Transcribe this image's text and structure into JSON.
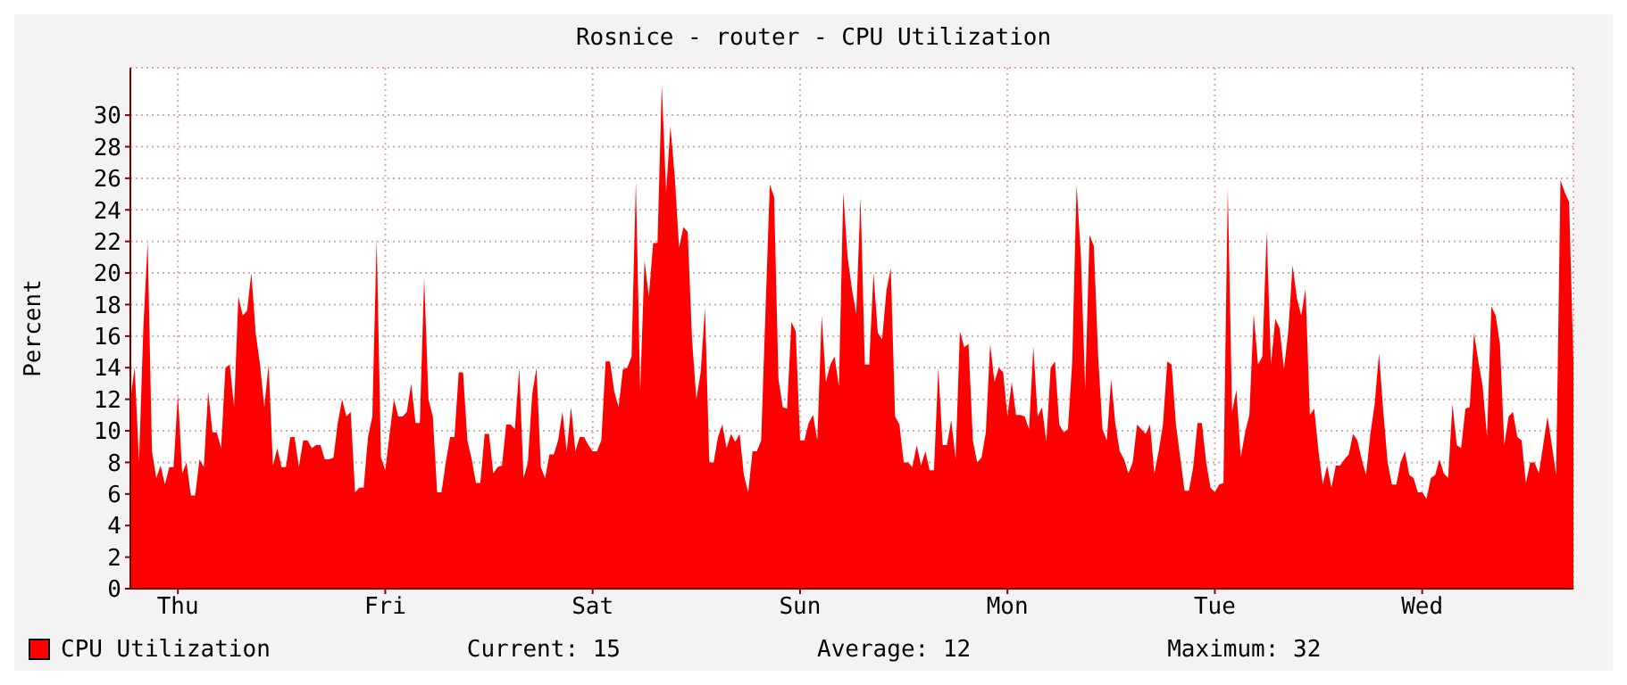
{
  "chart_data": {
    "type": "area",
    "title": "Rosnice - router - CPU Utilization",
    "ylabel": "Percent",
    "ylim": [
      0,
      33
    ],
    "yticks": [
      0,
      2,
      4,
      6,
      8,
      10,
      12,
      14,
      16,
      18,
      20,
      22,
      24,
      26,
      28,
      30
    ],
    "grid": true,
    "legend": "bottom",
    "annotations": [
      "Current: 15",
      "Average: 12",
      "Maximum: 32"
    ],
    "categories": [
      null,
      null,
      null,
      null,
      null,
      null,
      null,
      null,
      null,
      null,
      null,
      "Thu",
      null,
      null,
      null,
      null,
      null,
      null,
      null,
      null,
      null,
      null,
      null,
      null,
      null,
      null,
      null,
      null,
      null,
      null,
      null,
      null,
      null,
      null,
      null,
      null,
      null,
      null,
      null,
      null,
      null,
      null,
      null,
      null,
      null,
      null,
      null,
      null,
      null,
      null,
      null,
      null,
      null,
      null,
      null,
      null,
      null,
      null,
      null,
      "Fri",
      null,
      null,
      null,
      null,
      null,
      null,
      null,
      null,
      null,
      null,
      null,
      null,
      null,
      null,
      null,
      null,
      null,
      null,
      null,
      null,
      null,
      null,
      null,
      null,
      null,
      null,
      null,
      null,
      null,
      null,
      null,
      null,
      null,
      null,
      null,
      null,
      null,
      null,
      null,
      null,
      null,
      null,
      null,
      null,
      null,
      null,
      null,
      "Sat",
      null,
      null,
      null,
      null,
      null,
      null,
      null,
      null,
      null,
      null,
      null,
      null,
      null,
      null,
      null,
      null,
      null,
      null,
      null,
      null,
      null,
      null,
      null,
      null,
      null,
      null,
      null,
      null,
      null,
      null,
      null,
      null,
      null,
      null,
      null,
      null,
      null,
      null,
      null,
      null,
      null,
      null,
      null,
      null,
      null,
      null,
      null,
      "Sun",
      null,
      null,
      null,
      null,
      null,
      null,
      null,
      null,
      null,
      null,
      null,
      null,
      null,
      null,
      null,
      null,
      null,
      null,
      null,
      null,
      null,
      null,
      null,
      null,
      null,
      null,
      null,
      null,
      null,
      null,
      null,
      null,
      null,
      null,
      null,
      null,
      null,
      null,
      null,
      null,
      null,
      null,
      null,
      null,
      null,
      null,
      null,
      "Mon",
      null,
      null,
      null,
      null,
      null,
      null,
      null,
      null,
      null,
      null,
      null,
      null,
      null,
      null,
      null,
      null,
      null,
      null,
      null,
      null,
      null,
      null,
      null,
      null,
      null,
      null,
      null,
      null,
      null,
      null,
      null,
      null,
      null,
      null,
      null,
      null,
      null,
      null,
      null,
      null,
      null,
      null,
      null,
      null,
      null,
      null,
      null,
      "Tue",
      null,
      null,
      null,
      null,
      null,
      null,
      null,
      null,
      null,
      null,
      null,
      null,
      null,
      null,
      null,
      null,
      null,
      null,
      null,
      null,
      null,
      null,
      null,
      null,
      null,
      null,
      null,
      null,
      null,
      null,
      null,
      null,
      null,
      null,
      null,
      null,
      null,
      null,
      null,
      null,
      null,
      null,
      null,
      null,
      null,
      null,
      null,
      "Wed",
      null,
      null,
      null,
      null,
      null,
      null,
      null,
      null,
      null,
      null,
      null,
      null,
      null,
      null,
      null,
      null,
      null,
      null,
      null,
      null,
      null,
      null,
      null,
      null,
      null,
      null,
      null,
      null,
      null,
      null,
      null,
      null,
      null,
      null,
      null
    ],
    "series": [
      {
        "name": "CPU Utilization",
        "color": "#ff0000",
        "values": [
          12,
          14,
          8,
          16.5,
          22,
          8.7,
          7,
          7.8,
          6.6,
          7.7,
          7.7,
          12.3,
          7.3,
          8,
          5.9,
          5.9,
          8.2,
          7.7,
          12.5,
          9.9,
          9.9,
          8.9,
          14,
          14.2,
          11.5,
          18.5,
          17.3,
          17.6,
          20,
          16.2,
          14.2,
          11.5,
          14.2,
          7.8,
          8.9,
          7.7,
          7.7,
          9.6,
          9.6,
          7.7,
          9.4,
          9.4,
          8.9,
          9.1,
          9.1,
          8.2,
          8.2,
          8.3,
          10.5,
          12,
          10.9,
          11.2,
          6.1,
          6.4,
          6.4,
          9.6,
          10.9,
          22.2,
          8.3,
          7.5,
          9.8,
          12,
          10.9,
          10.9,
          11.2,
          13,
          10.5,
          10.5,
          19.7,
          12,
          10.9,
          6.1,
          6.1,
          8,
          9.6,
          9.6,
          13.7,
          13.7,
          9.4,
          8.2,
          6.7,
          6.7,
          9.8,
          9.8,
          7.3,
          7.7,
          7.8,
          10.4,
          10.4,
          10.1,
          14,
          7,
          8,
          12.3,
          14,
          7.7,
          7,
          8.5,
          8.5,
          9.4,
          11.2,
          8.7,
          11.5,
          8.7,
          9.6,
          9.6,
          9.1,
          8.7,
          8.7,
          9.4,
          14.4,
          14.4,
          12.5,
          11.5,
          13.9,
          14,
          14.7,
          25.8,
          12.5,
          20.8,
          18.5,
          21.9,
          21.9,
          31.9,
          25.1,
          29.3,
          26.1,
          21.6,
          22.9,
          22.6,
          15.8,
          12,
          13.7,
          17.8,
          8,
          8,
          9.6,
          10.4,
          8.9,
          9.8,
          9.3,
          9.8,
          7.2,
          6.1,
          8.7,
          8.7,
          9.4,
          17.6,
          25.6,
          24.8,
          13.3,
          11.5,
          11.4,
          16.9,
          16.3,
          9.4,
          9.4,
          10.5,
          11,
          9.4,
          17.3,
          13.1,
          14.2,
          14.7,
          12.8,
          25.1,
          21,
          19,
          17.4,
          24.8,
          14.2,
          14.2,
          20,
          16.2,
          15.8,
          18.9,
          20.3,
          10.9,
          10.4,
          8,
          8,
          7.7,
          9.1,
          7.8,
          8.7,
          7.5,
          7.5,
          14,
          9.1,
          9.1,
          10.7,
          8.2,
          16.3,
          15.3,
          15.5,
          9.4,
          8,
          8.3,
          9.9,
          15.5,
          13.1,
          14,
          13.7,
          10.9,
          13.1,
          11,
          11,
          10.9,
          10.1,
          15.3,
          10.9,
          11.5,
          9.3,
          14,
          14.4,
          10.4,
          9.9,
          10.1,
          14.4,
          25.6,
          21.1,
          12.6,
          22.4,
          21.7,
          14.7,
          10.1,
          9.4,
          13.3,
          10.4,
          8.7,
          8.2,
          7.3,
          8,
          10.4,
          10.1,
          9.8,
          10.4,
          7.3,
          8.7,
          10.4,
          14.4,
          14.2,
          10.4,
          8.3,
          6.2,
          6.2,
          7.7,
          10.5,
          10.5,
          8,
          6.4,
          6.1,
          6.6,
          6.7,
          25.4,
          11.2,
          12.6,
          8.3,
          9.9,
          11,
          17.4,
          14.2,
          14.7,
          22.6,
          14.2,
          17.1,
          16.5,
          13.9,
          16.3,
          20.5,
          18.4,
          17.3,
          19,
          11,
          11.4,
          8.7,
          6.6,
          7.8,
          6.4,
          7.8,
          7.8,
          8.2,
          8.5,
          9.8,
          9.4,
          8.2,
          7.2,
          9.8,
          11.7,
          14.9,
          11.2,
          8,
          6.6,
          6.6,
          8,
          8.7,
          7.2,
          7,
          6.1,
          6.1,
          5.7,
          7,
          7.2,
          8.2,
          7.3,
          7,
          11.7,
          9.1,
          8.9,
          11.4,
          11.5,
          16.2,
          14.4,
          12.8,
          9.6,
          17.9,
          17.3,
          15.5,
          9.1,
          10.9,
          11.2,
          9.6,
          9.4,
          6.7,
          8,
          8,
          7.3,
          9.1,
          10.9,
          9.1,
          7.2,
          25.9,
          25.1,
          24.5,
          14.4
        ]
      }
    ]
  }
}
